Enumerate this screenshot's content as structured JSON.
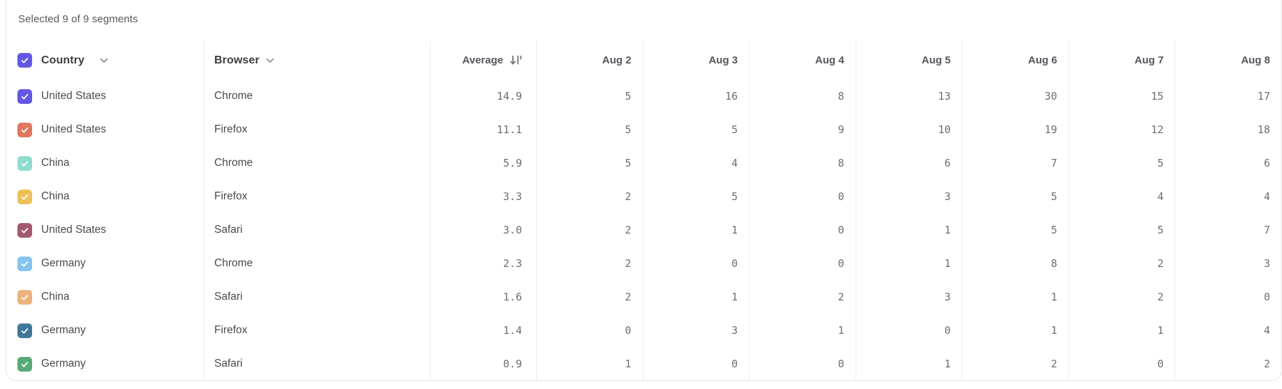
{
  "status": "Selected 9 of 9 segments",
  "accent_color": "#6358e3",
  "border_color": "#ebebee",
  "columns": {
    "country": {
      "label": "Country"
    },
    "browser": {
      "label": "Browser"
    },
    "average": {
      "label": "Average"
    },
    "dates": [
      "Aug 2",
      "Aug 3",
      "Aug 4",
      "Aug 5",
      "Aug 6",
      "Aug 7",
      "Aug 8"
    ]
  },
  "icons": {
    "header_checkbox": "checkbox-checked",
    "country_chevron": "chevron-down",
    "browser_chevron": "chevron-down",
    "average_sort": "sort-descending"
  },
  "rows": [
    {
      "country": "United States",
      "browser": "Chrome",
      "average": "14.9",
      "checked": true,
      "color": "#6358e3",
      "values": [
        5,
        16,
        8,
        13,
        30,
        15,
        17
      ]
    },
    {
      "country": "United States",
      "browser": "Firefox",
      "average": "11.1",
      "checked": true,
      "color": "#df785f",
      "values": [
        5,
        5,
        9,
        10,
        19,
        12,
        18
      ]
    },
    {
      "country": "China",
      "browser": "Chrome",
      "average": "5.9",
      "checked": true,
      "color": "#8edcd0",
      "values": [
        5,
        4,
        8,
        6,
        7,
        5,
        6
      ]
    },
    {
      "country": "China",
      "browser": "Firefox",
      "average": "3.3",
      "checked": true,
      "color": "#ecc158",
      "values": [
        2,
        5,
        0,
        3,
        5,
        4,
        4
      ]
    },
    {
      "country": "United States",
      "browser": "Safari",
      "average": "3.0",
      "checked": true,
      "color": "#a25b6e",
      "values": [
        2,
        1,
        0,
        1,
        5,
        5,
        7
      ]
    },
    {
      "country": "Germany",
      "browser": "Chrome",
      "average": "2.3",
      "checked": true,
      "color": "#87c3ee",
      "values": [
        2,
        0,
        0,
        1,
        8,
        2,
        3
      ]
    },
    {
      "country": "China",
      "browser": "Safari",
      "average": "1.6",
      "checked": true,
      "color": "#eeb37d",
      "values": [
        2,
        1,
        2,
        3,
        1,
        2,
        0
      ]
    },
    {
      "country": "Germany",
      "browser": "Firefox",
      "average": "1.4",
      "checked": true,
      "color": "#40789a",
      "values": [
        0,
        3,
        1,
        0,
        1,
        1,
        4
      ]
    },
    {
      "country": "Germany",
      "browser": "Safari",
      "average": "0.9",
      "checked": true,
      "color": "#57aa78",
      "values": [
        1,
        0,
        0,
        1,
        2,
        0,
        2
      ]
    }
  ]
}
